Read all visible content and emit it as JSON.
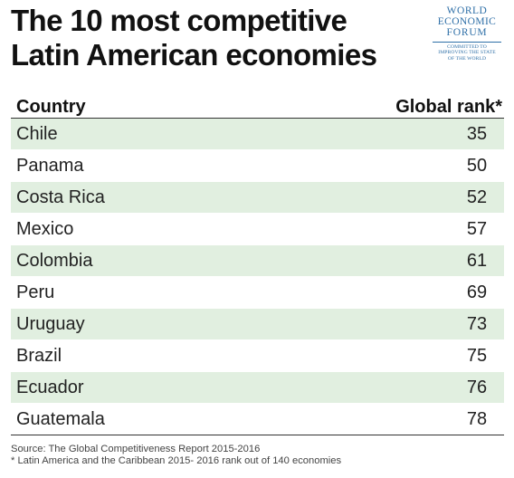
{
  "title_line1": "The 10 most competitive",
  "title_line2": "Latin American economies",
  "logo": {
    "line1": "WORLD",
    "line2": "ECONOMIC",
    "line3": "FORUM",
    "tagline1": "COMMITTED TO",
    "tagline2": "IMPROVING THE STATE",
    "tagline3": "OF THE WORLD"
  },
  "chart_data": {
    "type": "table",
    "columns": [
      "Country",
      "Global rank*"
    ],
    "rows": [
      {
        "country": "Chile",
        "rank": "35"
      },
      {
        "country": "Panama",
        "rank": "50"
      },
      {
        "country": "Costa Rica",
        "rank": "52"
      },
      {
        "country": "Mexico",
        "rank": "57"
      },
      {
        "country": "Colombia",
        "rank": "61"
      },
      {
        "country": "Peru",
        "rank": "69"
      },
      {
        "country": "Uruguay",
        "rank": "73"
      },
      {
        "country": "Brazil",
        "rank": "75"
      },
      {
        "country": "Ecuador",
        "rank": "76"
      },
      {
        "country": "Guatemala",
        "rank": "78"
      }
    ]
  },
  "footer": {
    "source": "Source: The Global Competitiveness Report 2015-2016",
    "note": "* Latin America and the Caribbean 2015- 2016 rank out of 140 economies"
  },
  "colors": {
    "row_shade": "#e1efe0",
    "logo_blue": "#2e6fa7"
  }
}
